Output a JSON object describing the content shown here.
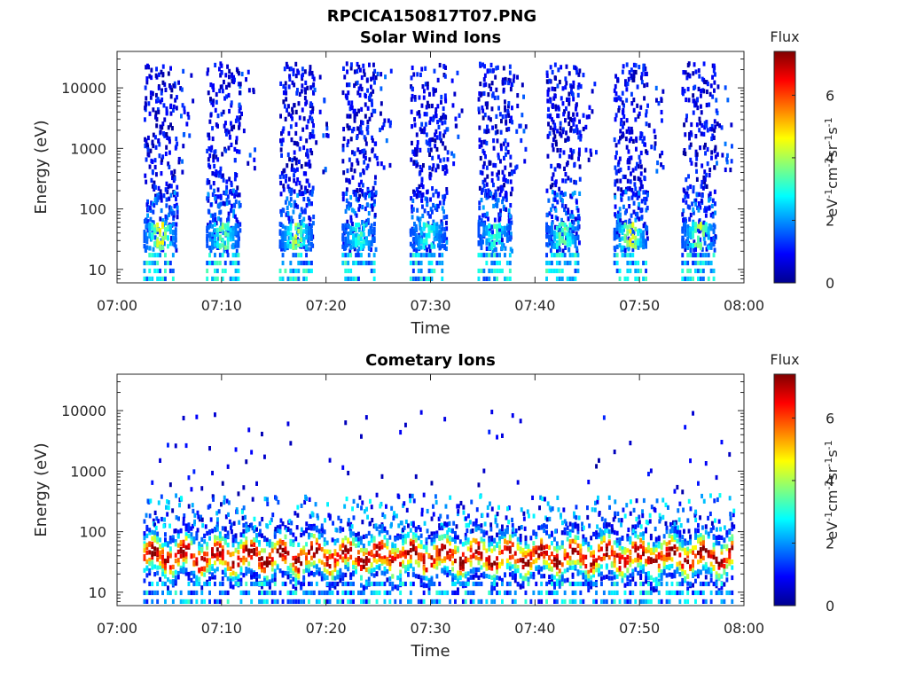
{
  "figure_title": "RPCICA150817T07.PNG",
  "chart_data": [
    {
      "type": "heatmap",
      "title": "Solar Wind Ions",
      "xlabel": "Time",
      "ylabel": "Energy (eV)",
      "y_scale": "log",
      "ylim": [
        6,
        40000
      ],
      "xlim": [
        "07:00",
        "08:00"
      ],
      "x_tick_labels": [
        "07:00",
        "07:10",
        "07:20",
        "07:30",
        "07:40",
        "07:50",
        "08:00"
      ],
      "y_tick_labels": [
        "10",
        "100",
        "1000",
        "10000"
      ],
      "y_tick_values": [
        10,
        100,
        1000,
        10000
      ],
      "colorbar": {
        "label": "Flux",
        "unit_label": "eV-1cm-2sr-1s-1",
        "ticks": [
          "0",
          "2",
          "4",
          "6"
        ],
        "range": [
          0,
          7.4
        ],
        "colormap": "jet"
      },
      "scan_bursts": [
        {
          "start": "07:02.5",
          "end": "07:05.6",
          "low_energy_peak_flux": 5.0
        },
        {
          "start": "07:08.5",
          "end": "07:11.6",
          "low_energy_peak_flux": 4.0
        },
        {
          "start": "07:15.5",
          "end": "07:18.6",
          "low_energy_peak_flux": 4.5
        },
        {
          "start": "07:21.5",
          "end": "07:24.6",
          "low_energy_peak_flux": 3.5
        },
        {
          "start": "07:28.0",
          "end": "07:31.3",
          "low_energy_peak_flux": 3.5
        },
        {
          "start": "07:34.5",
          "end": "07:37.6",
          "low_energy_peak_flux": 3.5
        },
        {
          "start": "07:41.0",
          "end": "07:44.2",
          "low_energy_peak_flux": 4.0
        },
        {
          "start": "07:47.5",
          "end": "07:50.6",
          "low_energy_peak_flux": 5.0
        },
        {
          "start": "07:54.0",
          "end": "07:57.2",
          "low_energy_peak_flux": 4.5
        }
      ]
    },
    {
      "type": "heatmap",
      "title": "Cometary Ions",
      "xlabel": "Time",
      "ylabel": "Energy (eV)",
      "y_scale": "log",
      "ylim": [
        6,
        40000
      ],
      "xlim": [
        "07:00",
        "08:00"
      ],
      "x_tick_labels": [
        "07:00",
        "07:10",
        "07:20",
        "07:30",
        "07:40",
        "07:50",
        "08:00"
      ],
      "y_tick_labels": [
        "10",
        "100",
        "1000",
        "10000"
      ],
      "y_tick_values": [
        10,
        100,
        1000,
        10000
      ],
      "colorbar": {
        "label": "Flux",
        "unit_label": "eV-1cm-2sr-1s-1",
        "ticks": [
          "0",
          "2",
          "4",
          "6"
        ],
        "range": [
          0,
          7.4
        ],
        "colormap": "jet"
      },
      "data_coverage": {
        "start": "07:02.5",
        "end": "07:59.0"
      },
      "core_energy_eV": 40,
      "core_peak_flux": 7.0
    }
  ],
  "colors": {
    "axis": "#262626",
    "background": "#ffffff"
  }
}
